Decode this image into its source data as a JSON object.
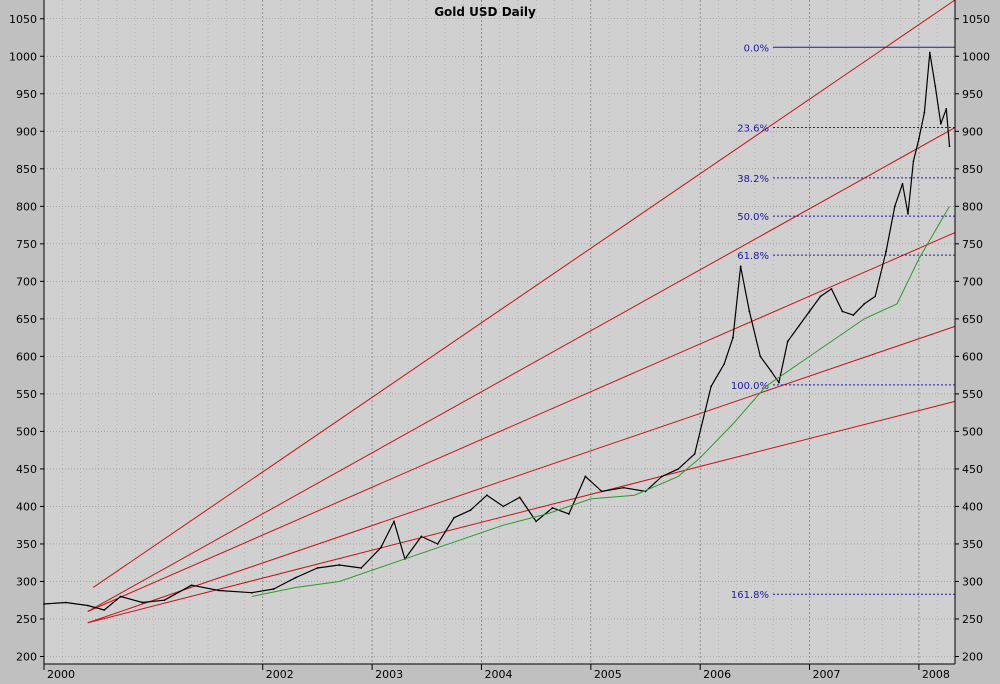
{
  "chart_data": {
    "type": "line",
    "title": "Gold USD Daily",
    "ylim": [
      190,
      1075
    ],
    "xlim": [
      2000.0,
      2008.33
    ],
    "y_ticks": [
      200,
      250,
      300,
      350,
      400,
      450,
      500,
      550,
      600,
      650,
      700,
      750,
      800,
      850,
      900,
      950,
      1000,
      1050
    ],
    "y_tick_labels": [
      "200",
      "250",
      "300",
      "350",
      "400",
      "450",
      "500",
      "550",
      "600",
      "650",
      "700",
      "750",
      "800",
      "850",
      "900",
      "950",
      "1000",
      "1050"
    ],
    "x_ticks": [
      2000,
      2002,
      2003,
      2004,
      2005,
      2006,
      2007,
      2008
    ],
    "x_tick_labels": [
      "2000",
      "2002",
      "2003",
      "2004",
      "2005",
      "2006",
      "2007",
      "2008"
    ],
    "grid": true,
    "series": [
      {
        "name": "",
        "color": "#000000",
        "x": [
          2000.0,
          2000.2,
          2000.4,
          2000.55,
          2000.7,
          2000.9,
          2001.1,
          2001.35,
          2001.6,
          2001.9,
          2002.1,
          2002.3,
          2002.5,
          2002.7,
          2002.9,
          2003.08,
          2003.2,
          2003.3,
          2003.45,
          2003.6,
          2003.75,
          2003.9,
          2004.05,
          2004.2,
          2004.35,
          2004.5,
          2004.65,
          2004.8,
          2004.95,
          2005.1,
          2005.3,
          2005.5,
          2005.65,
          2005.8,
          2005.95,
          2006.1,
          2006.22,
          2006.3,
          2006.37,
          2006.45,
          2006.55,
          2006.65,
          2006.72,
          2006.8,
          2006.9,
          2007.0,
          2007.1,
          2007.2,
          2007.3,
          2007.4,
          2007.5,
          2007.6,
          2007.7,
          2007.78,
          2007.85,
          2007.9,
          2007.95,
          2008.0,
          2008.05,
          2008.1,
          2008.15,
          2008.2,
          2008.25,
          2008.28
        ],
        "y": [
          270,
          272,
          268,
          262,
          280,
          272,
          275,
          295,
          288,
          285,
          290,
          305,
          318,
          322,
          318,
          345,
          380,
          330,
          360,
          350,
          385,
          395,
          415,
          400,
          412,
          380,
          398,
          390,
          440,
          420,
          425,
          420,
          440,
          450,
          470,
          560,
          590,
          625,
          720,
          660,
          600,
          580,
          565,
          620,
          640,
          660,
          680,
          690,
          660,
          655,
          670,
          680,
          740,
          800,
          830,
          790,
          860,
          890,
          925,
          1005,
          960,
          910,
          930,
          880
        ]
      },
      {
        "name": "",
        "color": "#2a9a2a",
        "x": [
          2001.9,
          2002.3,
          2002.7,
          2003.0,
          2003.4,
          2003.8,
          2004.2,
          2004.6,
          2005.0,
          2005.4,
          2005.8,
          2006.0,
          2006.3,
          2006.6,
          2006.9,
          2007.2,
          2007.5,
          2007.8,
          2008.0,
          2008.28
        ],
        "y": [
          280,
          292,
          300,
          315,
          335,
          355,
          375,
          390,
          410,
          415,
          440,
          465,
          510,
          560,
          590,
          620,
          650,
          670,
          730,
          800
        ]
      }
    ],
    "trendlines": [
      {
        "x": [
          2000.45,
          2008.33
        ],
        "y": [
          292,
          1075
        ],
        "color": "#d01010"
      },
      {
        "x": [
          2000.4,
          2008.33
        ],
        "y": [
          260,
          905
        ],
        "color": "#d01010"
      },
      {
        "x": [
          2000.4,
          2008.33
        ],
        "y": [
          260,
          765
        ],
        "color": "#d01010"
      },
      {
        "x": [
          2000.4,
          2008.33
        ],
        "y": [
          245,
          640
        ],
        "color": "#d01010"
      },
      {
        "x": [
          2000.4,
          2008.33
        ],
        "y": [
          245,
          540
        ],
        "color": "#d01010"
      }
    ],
    "fibonacci": {
      "x_start": 2006.3,
      "x_end": 2008.33,
      "levels": [
        {
          "label": "0.0%",
          "value": 1012
        },
        {
          "label": "23.6%",
          "value": 905
        },
        {
          "label": "38.2%",
          "value": 838
        },
        {
          "label": "50.0%",
          "value": 787
        },
        {
          "label": "61.8%",
          "value": 735
        },
        {
          "label": "100.0%",
          "value": 562
        },
        {
          "label": "161.8%",
          "value": 283
        }
      ]
    }
  }
}
